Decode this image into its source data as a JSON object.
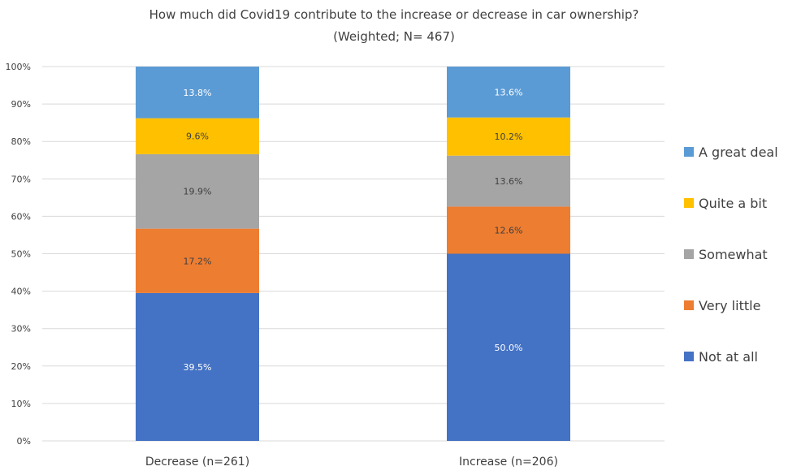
{
  "chart_data": {
    "type": "bar",
    "stacked": true,
    "title": "How much did Covid19 contribute to the increase or decrease in car ownership?",
    "subtitle": "(Weighted; N= 467)",
    "xlabel": "",
    "ylabel": "",
    "ylim": [
      0,
      100
    ],
    "y_ticks": [
      "0%",
      "10%",
      "20%",
      "30%",
      "40%",
      "50%",
      "60%",
      "70%",
      "80%",
      "90%",
      "100%"
    ],
    "grid": true,
    "legend_position": "right",
    "categories": [
      "Decrease (n=261)",
      "Increase (n=206)"
    ],
    "series": [
      {
        "name": "Not at all",
        "color": "#4472C4",
        "label_color": "#ffffff",
        "values": [
          39.5,
          50.0
        ],
        "labels": [
          "39.5%",
          "50.0%"
        ]
      },
      {
        "name": "Very little",
        "color": "#ED7D31",
        "label_color": "#404040",
        "values": [
          17.2,
          12.6
        ],
        "labels": [
          "17.2%",
          "12.6%"
        ]
      },
      {
        "name": "Somewhat",
        "color": "#A5A5A5",
        "label_color": "#404040",
        "values": [
          19.9,
          13.6
        ],
        "labels": [
          "19.9%",
          "13.6%"
        ]
      },
      {
        "name": "Quite a bit",
        "color": "#FFC000",
        "label_color": "#404040",
        "values": [
          9.6,
          10.2
        ],
        "labels": [
          "9.6%",
          "10.2%"
        ]
      },
      {
        "name": "A great deal",
        "color": "#5B9BD5",
        "label_color": "#ffffff",
        "values": [
          13.8,
          13.6
        ],
        "labels": [
          "13.8%",
          "13.6%"
        ]
      }
    ]
  }
}
